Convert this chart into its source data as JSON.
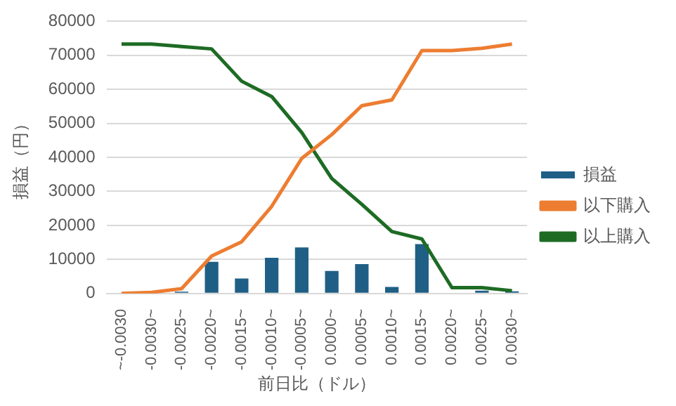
{
  "chart_data": {
    "type": "bar",
    "xlabel": "前日比（ドル）",
    "ylabel": "損益（円）",
    "categories": [
      "~-0.0030",
      "-0.0030~",
      "-0.0025~",
      "-0.0020~",
      "-0.0015~",
      "-0.0010~",
      "-0.0005~",
      "0.0000~",
      "0.0005~",
      "0.0010~",
      "0.0015~",
      "0.0020~",
      "0.0025~",
      "0.0030~"
    ],
    "series": [
      {
        "name": "損益",
        "color": "#1f5f86",
        "values": [
          0,
          0,
          500,
          9300,
          4400,
          10500,
          13500,
          6600,
          8600,
          1900,
          14500,
          0,
          800,
          600
        ]
      },
      {
        "name": "以下購入",
        "type": "line",
        "color": "#ed7d31",
        "values": [
          0,
          300,
          1400,
          11000,
          15200,
          25600,
          39700,
          46700,
          55200,
          56900,
          71400,
          71400,
          72100,
          73300
        ]
      },
      {
        "name": "以上購入",
        "type": "line",
        "color": "#1e6b24",
        "values": [
          73300,
          73300,
          72600,
          71900,
          62400,
          57900,
          47300,
          33800,
          26200,
          18200,
          16000,
          1700,
          1700,
          800
        ]
      }
    ],
    "ylim": [
      0,
      80000
    ],
    "yticks": [
      0,
      10000,
      20000,
      30000,
      40000,
      50000,
      60000,
      70000,
      80000
    ],
    "grid": "y",
    "legend": "right",
    "marker": "none"
  }
}
